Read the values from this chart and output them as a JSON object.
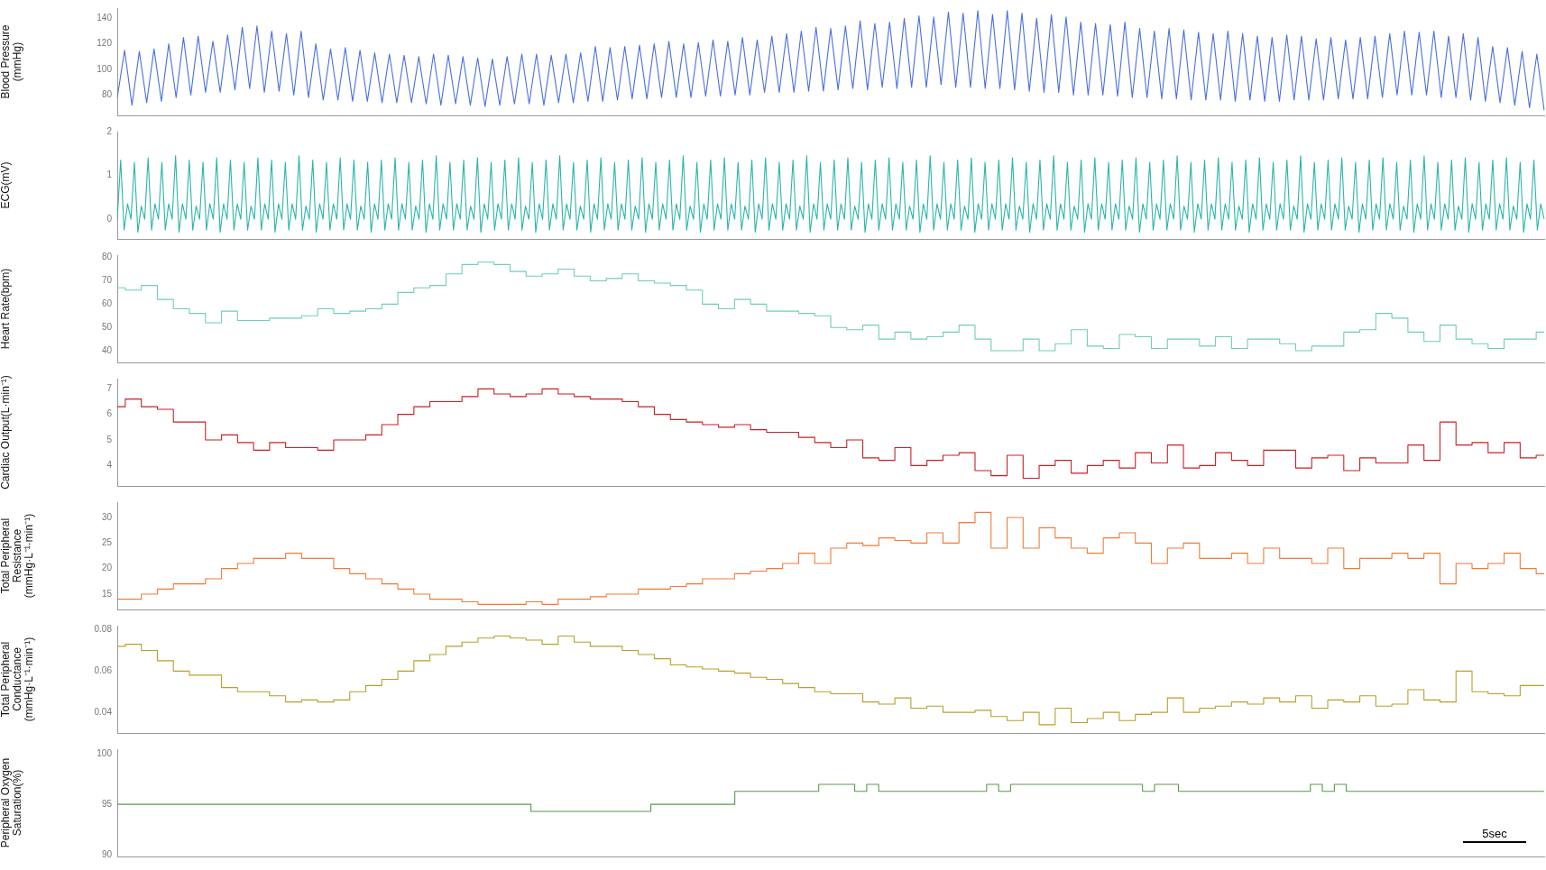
{
  "chart_data": [
    {
      "type": "line",
      "ylabel": "Blood Pressure\n(mmHg)",
      "ylim": [
        64,
        148
      ],
      "yticks": [
        80,
        100,
        120,
        140
      ],
      "tick_labels": "y",
      "grid": false,
      "legend": false,
      "marker": "none",
      "categories": [
        null,
        null,
        null,
        null,
        null,
        null,
        null,
        null,
        null,
        null,
        null,
        null,
        null,
        null,
        null,
        null,
        null,
        null,
        null,
        null,
        null,
        null,
        null,
        null,
        null,
        null,
        null,
        null,
        null,
        null,
        null,
        null,
        null,
        null,
        null,
        null,
        null,
        null,
        null,
        null,
        null,
        null,
        null,
        null,
        null,
        null,
        null,
        null,
        null,
        null,
        null,
        null,
        null,
        null,
        null,
        null,
        null,
        null,
        null,
        null,
        null,
        null,
        null,
        null,
        null,
        null,
        null,
        null,
        null,
        null,
        null,
        null,
        null,
        null,
        null,
        null,
        null,
        null,
        null,
        null,
        null,
        null,
        null,
        null,
        null,
        null,
        null,
        null,
        null,
        null,
        null,
        null,
        null,
        null,
        null,
        null,
        null,
        null,
        null,
        null,
        null,
        null,
        null,
        null,
        null,
        null,
        null,
        null,
        null,
        null,
        null,
        null,
        null,
        null,
        null,
        null,
        null,
        null,
        null,
        null,
        null,
        null,
        null,
        null,
        null,
        null,
        null,
        null,
        null,
        null,
        null,
        null,
        null,
        null,
        null,
        null,
        null,
        null,
        null,
        null,
        null,
        null,
        null,
        null,
        null,
        null,
        null,
        null,
        null,
        null,
        null,
        null,
        null,
        null,
        null,
        null,
        null,
        null,
        null,
        null,
        null,
        null,
        null,
        null,
        null,
        null,
        null,
        null,
        null,
        null,
        null,
        null,
        null,
        null,
        null,
        null,
        null,
        null,
        null,
        null,
        null,
        null,
        null,
        null,
        null,
        null,
        null,
        null,
        null,
        null,
        null,
        null,
        null,
        null,
        null
      ],
      "series": [
        {
          "color": "#4a6fe0",
          "values": [
            78,
            115,
            72,
            114,
            74,
            116,
            75,
            120,
            78,
            125,
            80,
            126,
            82,
            122,
            82,
            127,
            84,
            133,
            85,
            134,
            82,
            130,
            83,
            128,
            80,
            130,
            78,
            120,
            76,
            116,
            76,
            117,
            75,
            115,
            75,
            113,
            74,
            112,
            74,
            111,
            74,
            110,
            73,
            112,
            72,
            111,
            73,
            110,
            72,
            109,
            71,
            108,
            72,
            110,
            73,
            112,
            73,
            112,
            72,
            111,
            74,
            112,
            74,
            113,
            75,
            118,
            75,
            117,
            76,
            118,
            77,
            119,
            77,
            120,
            78,
            122,
            78,
            120,
            78,
            121,
            79,
            123,
            79,
            122,
            80,
            125,
            80,
            123,
            82,
            126,
            82,
            128,
            82,
            130,
            83,
            133,
            83,
            132,
            84,
            134,
            85,
            138,
            84,
            136,
            86,
            137,
            85,
            140,
            86,
            142,
            86,
            141,
            88,
            145,
            86,
            144,
            86,
            146,
            85,
            143,
            85,
            146,
            84,
            144,
            83,
            140,
            82,
            143,
            82,
            141,
            80,
            137,
            80,
            136,
            80,
            135,
            79,
            137,
            78,
            132,
            78,
            130,
            77,
            132,
            77,
            131,
            76,
            129,
            76,
            128,
            76,
            130,
            75,
            128,
            76,
            126,
            75,
            125,
            75,
            127,
            76,
            126,
            76,
            124,
            76,
            125,
            77,
            123,
            77,
            125,
            77,
            126,
            78,
            128,
            80,
            130,
            80,
            129,
            80,
            130,
            78,
            126,
            78,
            128,
            76,
            125,
            75,
            118,
            74,
            117,
            72,
            114,
            70,
            112,
            68
          ]
        }
      ]
    },
    {
      "type": "line",
      "ylabel": "ECG(mV)",
      "ylim": [
        -0.45,
        2
      ],
      "yticks": [
        0,
        1,
        2
      ],
      "tick_labels": "y",
      "grid": false,
      "legend": false,
      "marker": "none",
      "categories": [
        null,
        null,
        null,
        null,
        null,
        null,
        null,
        null,
        null,
        null,
        null,
        null,
        null,
        null,
        null,
        null,
        null,
        null,
        null,
        null,
        null,
        null,
        null,
        null,
        null,
        null,
        null,
        null,
        null,
        null,
        null,
        null,
        null,
        null,
        null,
        null,
        null,
        null,
        null,
        null,
        null,
        null,
        null,
        null,
        null,
        null,
        null,
        null,
        null,
        null,
        null,
        null,
        null,
        null,
        null,
        null,
        null,
        null,
        null,
        null,
        null,
        null,
        null,
        null,
        null,
        null,
        null,
        null,
        null,
        null,
        null,
        null,
        null,
        null,
        null,
        null,
        null,
        null,
        null,
        null,
        null,
        null,
        null,
        null,
        null,
        null,
        null,
        null,
        null,
        null,
        null,
        null,
        null,
        null,
        null,
        null,
        null,
        null,
        null,
        null,
        null,
        null,
        null,
        null,
        null,
        null,
        null,
        null,
        null,
        null,
        null,
        null,
        null,
        null,
        null,
        null,
        null,
        null,
        null,
        null,
        null,
        null,
        null,
        null,
        null,
        null,
        null,
        null,
        null,
        null,
        null,
        null,
        null,
        null,
        null,
        null,
        null,
        null,
        null,
        null,
        null,
        null,
        null,
        null,
        null,
        null,
        null,
        null,
        null,
        null,
        null,
        null,
        null,
        null,
        null,
        null,
        null,
        null,
        null,
        null,
        null,
        null,
        null,
        null,
        null,
        null,
        null,
        null,
        null,
        null,
        null,
        null,
        null,
        null,
        null,
        null,
        null,
        null,
        null,
        null,
        null,
        null,
        null,
        null,
        null,
        null,
        null,
        null,
        null,
        null,
        null,
        null,
        null,
        null,
        null,
        null,
        null,
        null,
        null,
        null,
        null,
        null,
        null,
        null,
        null,
        null,
        null,
        null,
        null,
        null,
        null,
        null,
        null,
        null,
        null,
        null,
        null,
        null,
        null,
        null,
        null,
        null,
        null,
        null,
        null,
        null,
        null,
        null,
        null,
        null,
        null,
        null,
        null,
        null,
        null,
        null,
        null,
        null,
        null,
        null,
        null,
        null,
        null,
        null,
        null,
        null,
        null,
        null,
        null,
        null,
        null,
        null,
        null,
        null,
        null,
        null,
        null,
        null,
        null,
        null,
        null,
        null,
        null,
        null,
        null,
        null,
        null,
        null,
        null,
        null,
        null,
        null,
        null,
        null,
        null,
        null,
        null,
        null,
        null,
        null,
        null,
        null,
        null,
        null,
        null,
        null,
        null,
        null,
        null,
        null,
        null,
        null,
        null,
        null,
        null,
        null,
        null,
        null,
        null,
        null,
        null,
        null,
        null,
        null,
        null,
        null,
        null,
        null,
        null,
        null,
        null,
        null,
        null,
        null,
        null,
        null,
        null,
        null,
        null,
        null,
        null,
        null,
        null,
        null,
        null,
        null,
        null,
        null,
        null,
        null,
        null,
        null,
        null,
        null,
        null,
        null,
        null,
        null,
        null,
        null,
        null,
        null,
        null,
        null,
        null,
        null,
        null,
        null,
        null,
        null,
        null,
        null,
        null,
        null,
        null,
        null,
        null,
        null,
        null,
        null,
        null,
        null,
        null,
        null,
        null,
        null,
        null,
        null,
        null,
        null,
        null,
        null,
        null,
        null,
        null,
        null,
        null,
        null,
        null,
        null,
        null,
        null,
        null,
        null,
        null,
        null,
        null,
        null,
        null,
        null,
        null,
        null,
        null,
        null,
        null,
        null,
        null,
        null,
        null,
        null,
        null,
        null,
        null,
        null,
        null,
        null,
        null,
        null,
        null,
        null,
        null,
        null,
        null,
        null,
        null,
        null,
        null
      ],
      "series": [
        {
          "color": "#2ab5a8",
          "values": [
            0,
            1.35,
            -0.25,
            0.35,
            0,
            1.3,
            -0.3,
            0.3,
            0,
            1.4,
            -0.25,
            0.35,
            0,
            1.3,
            -0.25,
            0.35,
            0,
            1.45,
            -0.3,
            0.35,
            0,
            1.35,
            -0.25,
            0.3,
            0,
            1.3,
            -0.25,
            0.35,
            0,
            1.4,
            -0.3,
            0.35,
            0,
            1.35,
            -0.25,
            0.35,
            0,
            1.3,
            -0.25,
            0.3,
            0,
            1.4,
            -0.25,
            0.35,
            0,
            1.35,
            -0.3,
            0.35,
            0,
            1.3,
            -0.25,
            0.35,
            0,
            1.45,
            -0.25,
            0.3,
            0,
            1.35,
            -0.3,
            0.35,
            0,
            1.3,
            -0.25,
            0.35,
            0,
            1.4,
            -0.25,
            0.35,
            0,
            1.35,
            -0.25,
            0.3,
            0,
            1.3,
            -0.3,
            0.35,
            0,
            1.35,
            -0.25,
            0.35,
            0,
            1.4,
            -0.25,
            0.35,
            0,
            1.3,
            -0.25,
            0.3,
            0,
            1.35,
            -0.3,
            0.35,
            0,
            1.45,
            -0.25,
            0.35,
            0,
            1.3,
            -0.25,
            0.35,
            0,
            1.35,
            -0.25,
            0.3,
            0,
            1.4,
            -0.3,
            0.35,
            0,
            1.3,
            -0.25,
            0.35,
            0,
            1.35,
            -0.25,
            0.35,
            0,
            1.4,
            -0.25,
            0.3,
            0,
            1.3,
            -0.3,
            0.35,
            0,
            1.35,
            -0.25,
            0.35,
            0,
            1.45,
            -0.25,
            0.35,
            0,
            1.3,
            -0.25,
            0.3,
            0,
            1.35,
            -0.3,
            0.35,
            0,
            1.4,
            -0.25,
            0.35,
            0,
            1.3,
            -0.25,
            0.35,
            0,
            1.35,
            -0.25,
            0.3,
            0,
            1.4,
            -0.3,
            0.35,
            0,
            1.3,
            -0.25,
            0.35,
            0,
            1.35,
            -0.25,
            0.35,
            0,
            1.45,
            -0.25,
            0.3,
            0,
            1.3,
            -0.3,
            0.35,
            0,
            1.35,
            -0.25,
            0.35,
            0,
            1.4,
            -0.25,
            0.35,
            0,
            1.3,
            -0.25,
            0.3,
            0,
            1.35,
            -0.3,
            0.35,
            0,
            1.4,
            -0.25,
            0.35,
            0,
            1.3,
            -0.25,
            0.35,
            0,
            1.35,
            -0.25,
            0.3,
            0,
            1.45,
            -0.3,
            0.35,
            0,
            1.3,
            -0.25,
            0.35,
            0,
            1.35,
            -0.25,
            0.35,
            0,
            1.4,
            -0.25,
            0.3,
            0,
            1.3,
            -0.3,
            0.35,
            0,
            1.35,
            -0.25,
            0.35,
            0,
            1.4,
            -0.25,
            0.35,
            0,
            1.3,
            -0.25,
            0.3,
            0,
            1.35,
            -0.3,
            0.35,
            0,
            1.45,
            -0.25,
            0.35,
            0,
            1.3,
            -0.25,
            0.35,
            0,
            1.35,
            -0.25,
            0.3,
            0,
            1.4,
            -0.3,
            0.35,
            0,
            1.3,
            -0.25,
            0.35,
            0,
            1.35,
            -0.25,
            0.35,
            0,
            1.4,
            -0.25,
            0.3,
            0,
            1.3,
            -0.3,
            0.35,
            0,
            1.35,
            -0.25,
            0.35,
            0,
            1.45,
            -0.25,
            0.35,
            0,
            1.3,
            -0.25,
            0.3,
            0,
            1.35,
            -0.3,
            0.35,
            0,
            1.4,
            -0.25,
            0.35,
            0,
            1.3,
            -0.25,
            0.35,
            0,
            1.35,
            -0.25,
            0.3,
            0,
            1.4,
            -0.3,
            0.35,
            0,
            1.3,
            -0.25,
            0.35,
            0,
            1.35,
            -0.25,
            0.35,
            0,
            1.45,
            -0.25,
            0.3,
            0,
            1.3,
            -0.3,
            0.35,
            0,
            1.35,
            -0.25,
            0.35,
            0,
            1.4,
            -0.25,
            0.35,
            0,
            1.3,
            -0.25,
            0.3,
            0,
            1.35,
            -0.3,
            0.35,
            0,
            1.4,
            -0.25,
            0.35,
            0,
            1.3,
            -0.25,
            0.35,
            0,
            1.35,
            -0.25,
            0.3,
            0,
            1.45,
            -0.3,
            0.35,
            0,
            1.3,
            -0.25,
            0.35,
            0,
            1.35,
            -0.25,
            0.35,
            0,
            1.4,
            -0.25,
            0.3,
            0,
            1.3,
            -0.3,
            0.35,
            0,
            1.35,
            -0.25,
            0.35,
            0,
            1.4,
            -0.25,
            0.35,
            0,
            1.3,
            -0.25,
            0.3,
            0,
            1.35,
            -0.3,
            0.35,
            0,
            1.45,
            -0.25,
            0.35,
            0,
            1.3,
            -0.25,
            0.35,
            0,
            1.35,
            -0.25,
            0.3,
            0,
            1.4,
            -0.3,
            0.35,
            0,
            1.3,
            -0.25,
            0.35,
            0,
            1.35,
            -0.25,
            0.35,
            0,
            1.4,
            -0.25,
            0.3,
            0,
            1.3,
            -0.3,
            0.35,
            0,
            1.35,
            -0.25,
            0.35,
            0
          ]
        }
      ]
    },
    {
      "type": "step",
      "ylabel": "Heart Rate(bpm)",
      "ylim": [
        35,
        81
      ],
      "yticks": [
        40,
        50,
        60,
        70,
        80
      ],
      "tick_labels": "y",
      "grid": false,
      "legend": false,
      "marker": "none",
      "categories": [
        null,
        null,
        null,
        null,
        null,
        null,
        null,
        null,
        null,
        null,
        null,
        null,
        null,
        null,
        null,
        null,
        null,
        null,
        null,
        null,
        null,
        null,
        null,
        null,
        null,
        null,
        null,
        null,
        null,
        null,
        null,
        null,
        null,
        null,
        null,
        null,
        null,
        null,
        null,
        null,
        null,
        null,
        null,
        null,
        null,
        null,
        null,
        null,
        null,
        null,
        null,
        null,
        null,
        null,
        null,
        null,
        null,
        null,
        null,
        null,
        null,
        null,
        null,
        null,
        null,
        null,
        null,
        null,
        null,
        null,
        null,
        null,
        null,
        null,
        null,
        null,
        null,
        null,
        null,
        null,
        null,
        null,
        null,
        null,
        null,
        null,
        null,
        null,
        null,
        null
      ],
      "series": [
        {
          "color": "#6fd0b0",
          "values": [
            67,
            66,
            68,
            62,
            58,
            56,
            52,
            57,
            53,
            53,
            54,
            54,
            55,
            58,
            56,
            57,
            58,
            60,
            65,
            67,
            68,
            73,
            77,
            78,
            77,
            74,
            72,
            73,
            75,
            72,
            70,
            71,
            73,
            70,
            69,
            68,
            66,
            60,
            58,
            62,
            60,
            57,
            57,
            56,
            55,
            50,
            49,
            51,
            45,
            48,
            45,
            46,
            48,
            51,
            45,
            40,
            40,
            45,
            40,
            43,
            49,
            42,
            41,
            47,
            46,
            41,
            45,
            45,
            42,
            46,
            41,
            45,
            45,
            43,
            40,
            42,
            42,
            48,
            49,
            56,
            54,
            48,
            44,
            51,
            45,
            43,
            41,
            45,
            45,
            48
          ]
        }
      ]
    },
    {
      "type": "step",
      "ylabel": "Cardiac Output(L·min⁻¹)",
      "ylim": [
        3.2,
        7.4
      ],
      "yticks": [
        4,
        5,
        6,
        7
      ],
      "tick_labels": "y",
      "grid": false,
      "legend": false,
      "marker": "none",
      "categories": [
        null,
        null,
        null,
        null,
        null,
        null,
        null,
        null,
        null,
        null,
        null,
        null,
        null,
        null,
        null,
        null,
        null,
        null,
        null,
        null,
        null,
        null,
        null,
        null,
        null,
        null,
        null,
        null,
        null,
        null,
        null,
        null,
        null,
        null,
        null,
        null,
        null,
        null,
        null,
        null,
        null,
        null,
        null,
        null,
        null,
        null,
        null,
        null,
        null,
        null,
        null,
        null,
        null,
        null,
        null,
        null,
        null,
        null,
        null,
        null,
        null,
        null,
        null,
        null,
        null,
        null,
        null,
        null,
        null,
        null,
        null,
        null,
        null,
        null,
        null,
        null,
        null,
        null,
        null,
        null,
        null,
        null,
        null,
        null,
        null,
        null,
        null,
        null,
        null,
        null
      ],
      "series": [
        {
          "color": "#c8202a",
          "values": [
            6.3,
            6.6,
            6.3,
            6.2,
            5.7,
            5.7,
            5.0,
            5.2,
            4.9,
            4.6,
            4.9,
            4.7,
            4.7,
            4.6,
            5.0,
            5.0,
            5.2,
            5.6,
            6.0,
            6.3,
            6.5,
            6.5,
            6.7,
            7.0,
            6.8,
            6.7,
            6.8,
            7.0,
            6.8,
            6.7,
            6.6,
            6.6,
            6.5,
            6.3,
            6.0,
            5.8,
            5.7,
            5.6,
            5.5,
            5.6,
            5.4,
            5.3,
            5.3,
            5.1,
            4.9,
            4.7,
            5.0,
            4.3,
            4.2,
            4.7,
            4.0,
            4.2,
            4.4,
            4.5,
            3.8,
            3.6,
            4.4,
            3.5,
            4.0,
            4.2,
            3.7,
            4.0,
            4.2,
            3.9,
            4.5,
            4.1,
            4.8,
            3.9,
            4.0,
            4.5,
            4.2,
            4.0,
            4.6,
            4.6,
            3.9,
            4.3,
            4.4,
            3.8,
            4.3,
            4.1,
            4.1,
            4.8,
            4.2,
            5.7,
            4.8,
            4.9,
            4.5,
            4.9,
            4.3,
            4.4
          ]
        }
      ]
    },
    {
      "type": "step",
      "ylabel": "Total Peripheral\nResistance\n(mmHg·L⁻¹·min⁻¹)",
      "ylim": [
        12,
        33
      ],
      "yticks": [
        15,
        20,
        25,
        30
      ],
      "tick_labels": "y",
      "grid": false,
      "legend": false,
      "marker": "none",
      "categories": [
        null,
        null,
        null,
        null,
        null,
        null,
        null,
        null,
        null,
        null,
        null,
        null,
        null,
        null,
        null,
        null,
        null,
        null,
        null,
        null,
        null,
        null,
        null,
        null,
        null,
        null,
        null,
        null,
        null,
        null,
        null,
        null,
        null,
        null,
        null,
        null,
        null,
        null,
        null,
        null,
        null,
        null,
        null,
        null,
        null,
        null,
        null,
        null,
        null,
        null,
        null,
        null,
        null,
        null,
        null,
        null,
        null,
        null,
        null,
        null,
        null,
        null,
        null,
        null,
        null,
        null,
        null,
        null,
        null,
        null,
        null,
        null,
        null,
        null,
        null,
        null,
        null,
        null,
        null,
        null,
        null,
        null,
        null,
        null,
        null,
        null,
        null,
        null,
        null,
        null
      ],
      "series": [
        {
          "color": "#ef7c3a",
          "values": [
            14,
            14,
            15,
            16,
            17,
            17,
            18,
            20,
            21,
            22,
            22,
            23,
            22,
            22,
            20,
            19,
            18,
            17,
            16,
            15,
            14,
            14,
            13.5,
            13,
            13,
            13,
            13.5,
            13,
            14,
            14,
            14.5,
            15,
            15,
            16,
            16,
            16.5,
            17,
            18,
            18,
            19,
            19.5,
            20,
            21,
            23,
            21,
            24,
            25,
            24.5,
            26,
            25.5,
            25,
            27,
            25,
            29,
            31,
            24,
            30,
            24,
            28,
            26,
            24,
            23,
            26,
            27,
            25,
            21,
            24,
            25,
            22,
            22,
            23,
            21,
            24,
            22,
            22,
            21,
            24,
            20,
            22,
            22,
            23,
            22,
            23,
            17,
            21,
            20,
            21,
            23,
            20,
            19
          ]
        }
      ]
    },
    {
      "type": "step",
      "ylabel": "Total Peripheral\nConductance\n(mmHg·L⁻¹·min⁻¹)",
      "ylim": [
        0.03,
        0.082
      ],
      "yticks": [
        0.04,
        0.06,
        0.08
      ],
      "tick_labels": "y",
      "grid": false,
      "legend": false,
      "marker": "none",
      "categories": [
        null,
        null,
        null,
        null,
        null,
        null,
        null,
        null,
        null,
        null,
        null,
        null,
        null,
        null,
        null,
        null,
        null,
        null,
        null,
        null,
        null,
        null,
        null,
        null,
        null,
        null,
        null,
        null,
        null,
        null,
        null,
        null,
        null,
        null,
        null,
        null,
        null,
        null,
        null,
        null,
        null,
        null,
        null,
        null,
        null,
        null,
        null,
        null,
        null,
        null,
        null,
        null,
        null,
        null,
        null,
        null,
        null,
        null,
        null,
        null,
        null,
        null,
        null,
        null,
        null,
        null,
        null,
        null,
        null,
        null,
        null,
        null,
        null,
        null,
        null,
        null,
        null,
        null,
        null,
        null,
        null,
        null,
        null,
        null,
        null,
        null,
        null,
        null,
        null,
        null
      ],
      "series": [
        {
          "color": "#b8a02a",
          "values": [
            0.072,
            0.073,
            0.07,
            0.065,
            0.06,
            0.058,
            0.058,
            0.052,
            0.05,
            0.05,
            0.048,
            0.045,
            0.046,
            0.045,
            0.046,
            0.05,
            0.053,
            0.056,
            0.06,
            0.065,
            0.068,
            0.072,
            0.074,
            0.076,
            0.077,
            0.076,
            0.075,
            0.073,
            0.077,
            0.074,
            0.072,
            0.072,
            0.07,
            0.068,
            0.066,
            0.063,
            0.062,
            0.061,
            0.06,
            0.059,
            0.057,
            0.056,
            0.054,
            0.052,
            0.05,
            0.049,
            0.049,
            0.045,
            0.044,
            0.047,
            0.042,
            0.043,
            0.04,
            0.04,
            0.041,
            0.038,
            0.036,
            0.04,
            0.034,
            0.042,
            0.035,
            0.037,
            0.04,
            0.036,
            0.039,
            0.04,
            0.047,
            0.04,
            0.042,
            0.043,
            0.045,
            0.044,
            0.047,
            0.045,
            0.048,
            0.042,
            0.046,
            0.045,
            0.048,
            0.043,
            0.044,
            0.051,
            0.046,
            0.045,
            0.06,
            0.05,
            0.049,
            0.048,
            0.053,
            0.053
          ]
        }
      ]
    },
    {
      "type": "step",
      "ylabel": "Peripheral Oxygen\nSaturation(%)",
      "ylim": [
        89.8,
        100.5
      ],
      "yticks": [
        90,
        95,
        100
      ],
      "tick_labels": "y",
      "grid": false,
      "legend": false,
      "marker": "none",
      "annotations": [
        "5sec"
      ],
      "categories": [
        null,
        null,
        null,
        null,
        null,
        null,
        null,
        null,
        null,
        null,
        null,
        null,
        null,
        null,
        null,
        null,
        null,
        null,
        null,
        null,
        null,
        null,
        null,
        null,
        null,
        null,
        null,
        null,
        null,
        null,
        null,
        null,
        null,
        null,
        null,
        null,
        null,
        null,
        null,
        null,
        null,
        null,
        null,
        null,
        null,
        null,
        null,
        null,
        null,
        null,
        null,
        null,
        null,
        null,
        null,
        null,
        null,
        null,
        null,
        null,
        null,
        null,
        null,
        null,
        null,
        null,
        null,
        null,
        null,
        null,
        null,
        null,
        null,
        null,
        null,
        null,
        null,
        null,
        null,
        null,
        null,
        null,
        null,
        null,
        null,
        null,
        null,
        null,
        null,
        null,
        null,
        null,
        null,
        null,
        null,
        null,
        null,
        null,
        null,
        null,
        null,
        null,
        null,
        null,
        null,
        null,
        null,
        null,
        null,
        null,
        null,
        null,
        null,
        null,
        null,
        null,
        null,
        null,
        null,
        null
      ],
      "series": [
        {
          "color": "#5a9a4a",
          "values": [
            95,
            95,
            95,
            95,
            95,
            95,
            95,
            95,
            95,
            95,
            95,
            95,
            95,
            95,
            95,
            95,
            95,
            95,
            95,
            95,
            95,
            95,
            95,
            95,
            95,
            95,
            95,
            95,
            95,
            95,
            95,
            95,
            95,
            95,
            95,
            94.3,
            94.3,
            94.3,
            94.3,
            94.3,
            94.3,
            94.3,
            94.3,
            94.3,
            94.3,
            95,
            95,
            95,
            95,
            95,
            95,
            95,
            96.3,
            96.3,
            96.3,
            96.3,
            96.3,
            96.3,
            96.3,
            97,
            97,
            97,
            96.3,
            97,
            96.3,
            96.3,
            96.3,
            96.3,
            96.3,
            96.3,
            96.3,
            96.3,
            96.3,
            97,
            96.3,
            97,
            97,
            97,
            97,
            97,
            97,
            97,
            97,
            97,
            97,
            97,
            96.3,
            97,
            97,
            96.3,
            96.3,
            96.3,
            96.3,
            96.3,
            96.3,
            96.3,
            96.3,
            96.3,
            96.3,
            96.3,
            97,
            96.3,
            97,
            96.3,
            96.3,
            96.3,
            96.3,
            96.3,
            96.3,
            96.3,
            96.3,
            96.3,
            96.3,
            96.3,
            96.3,
            96.3,
            96.3,
            96.3,
            96.3,
            96.3
          ]
        }
      ]
    }
  ]
}
